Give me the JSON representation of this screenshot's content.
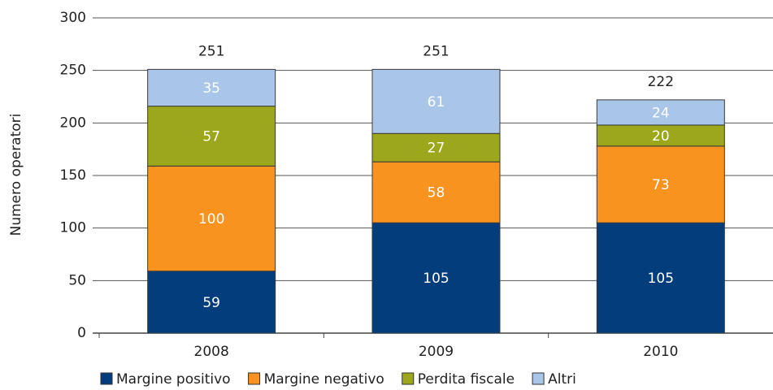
{
  "chart_data": {
    "type": "stacked_bar",
    "y_label": "Numero operatori",
    "categories": [
      "2008",
      "2009",
      "2010"
    ],
    "series": [
      {
        "name": "Margine positivo",
        "color": "#033d7c",
        "values": [
          59,
          105,
          105
        ]
      },
      {
        "name": "Margine negativo",
        "color": "#f7931e",
        "values": [
          100,
          58,
          73
        ]
      },
      {
        "name": "Perdita fiscale",
        "color": "#9ca71b",
        "values": [
          57,
          27,
          20
        ]
      },
      {
        "name": "Altri",
        "color": "#a9c5e8",
        "values": [
          35,
          61,
          24
        ]
      }
    ],
    "totals": [
      251,
      251,
      222
    ],
    "ylim": [
      0,
      300
    ],
    "yticks": [
      0,
      50,
      100,
      150,
      200,
      250,
      300
    ],
    "grid": true
  }
}
